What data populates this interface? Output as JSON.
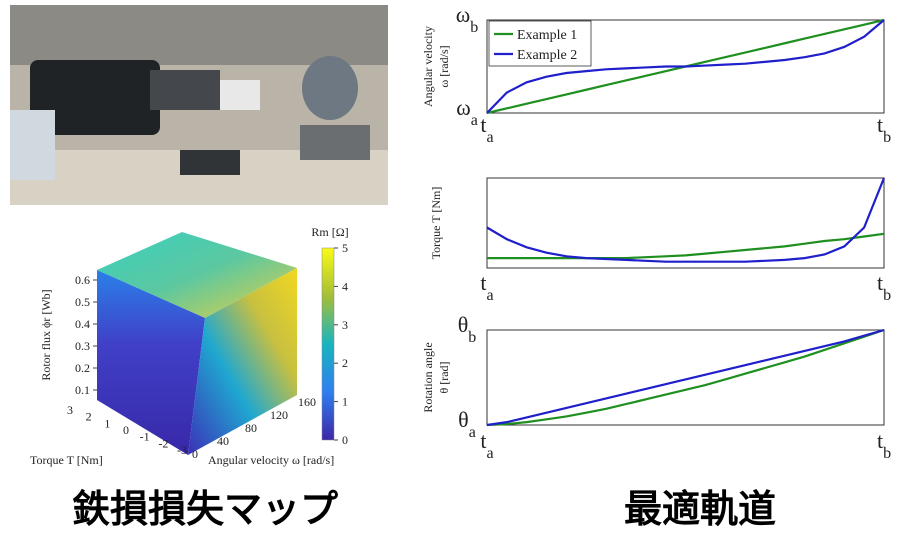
{
  "captions": [
    "鉄損損失マップ",
    "最適軌道"
  ],
  "loss_map": {
    "colorbar_title": "Rm [Ω]",
    "colorbar_ticks": [
      0,
      1,
      2,
      3,
      4,
      5
    ],
    "colorbar_lim": [
      0,
      5
    ],
    "flux_label": "Rotor flux ϕr [Wb]",
    "flux_ticks": [
      0.1,
      0.2,
      0.3,
      0.4,
      0.5,
      0.6
    ],
    "torque_label": "Torque T [Nm]",
    "torque_ticks": [
      3,
      2,
      1,
      0,
      -1,
      -2,
      -3
    ],
    "speed_label": "Angular velocity ω [rad/s]",
    "speed_ticks": [
      0,
      40,
      80,
      120,
      160
    ]
  },
  "chart_data": [
    {
      "type": "line",
      "ylabel": [
        "Angular velocity",
        "ω [rad/s]"
      ],
      "x": [
        0,
        0.05,
        0.1,
        0.15,
        0.2,
        0.25,
        0.3,
        0.35,
        0.4,
        0.45,
        0.5,
        0.55,
        0.6,
        0.65,
        0.7,
        0.75,
        0.8,
        0.85,
        0.9,
        0.95,
        1
      ],
      "xlim": [
        0,
        1
      ],
      "xticks": [
        {
          "value": 0,
          "label": "t",
          "sub": "a"
        },
        {
          "value": 1,
          "label": "t",
          "sub": "b"
        }
      ],
      "ylim": [
        0,
        1
      ],
      "yticks": [
        {
          "value": 0,
          "label": "ω",
          "sub": "a"
        },
        {
          "value": 1,
          "label": "ω",
          "sub": "b"
        }
      ],
      "legend": "upper left",
      "series": [
        {
          "name": "Example 1",
          "color": "#1f8f1f",
          "values": [
            0,
            0.05,
            0.1,
            0.15,
            0.2,
            0.25,
            0.3,
            0.35,
            0.4,
            0.45,
            0.5,
            0.55,
            0.6,
            0.65,
            0.7,
            0.75,
            0.8,
            0.85,
            0.9,
            0.95,
            1
          ]
        },
        {
          "name": "Example 2",
          "color": "#1f1fcc",
          "values": [
            0,
            0.22,
            0.33,
            0.39,
            0.43,
            0.45,
            0.47,
            0.48,
            0.49,
            0.5,
            0.5,
            0.51,
            0.52,
            0.53,
            0.55,
            0.57,
            0.6,
            0.64,
            0.71,
            0.82,
            1
          ]
        }
      ]
    },
    {
      "type": "line",
      "ylabel": [
        "Torque  T [Nm]"
      ],
      "x": [
        0,
        0.05,
        0.1,
        0.15,
        0.2,
        0.25,
        0.3,
        0.35,
        0.4,
        0.45,
        0.5,
        0.55,
        0.6,
        0.65,
        0.7,
        0.75,
        0.8,
        0.85,
        0.9,
        0.95,
        1
      ],
      "xlim": [
        0,
        1
      ],
      "xticks": [
        {
          "value": 0,
          "label": "t",
          "sub": "a"
        },
        {
          "value": 1,
          "label": "t",
          "sub": "b"
        }
      ],
      "ylim": [
        0,
        1
      ],
      "yticks": [],
      "series": [
        {
          "name": "Example 1",
          "color": "#1f8f1f",
          "values": [
            0.11,
            0.11,
            0.11,
            0.11,
            0.11,
            0.11,
            0.11,
            0.11,
            0.12,
            0.13,
            0.14,
            0.16,
            0.18,
            0.2,
            0.22,
            0.24,
            0.27,
            0.3,
            0.32,
            0.35,
            0.38
          ]
        },
        {
          "name": "Example 2",
          "color": "#1f1fcc",
          "values": [
            0.45,
            0.32,
            0.23,
            0.17,
            0.13,
            0.11,
            0.1,
            0.09,
            0.08,
            0.07,
            0.07,
            0.07,
            0.07,
            0.07,
            0.08,
            0.09,
            0.11,
            0.15,
            0.24,
            0.45,
            1
          ]
        }
      ]
    },
    {
      "type": "line",
      "ylabel": [
        "Rotation angle",
        "θ [rad]"
      ],
      "x": [
        0,
        0.05,
        0.1,
        0.15,
        0.2,
        0.25,
        0.3,
        0.35,
        0.4,
        0.45,
        0.5,
        0.55,
        0.6,
        0.65,
        0.7,
        0.75,
        0.8,
        0.85,
        0.9,
        0.95,
        1
      ],
      "xlim": [
        0,
        1
      ],
      "xticks": [
        {
          "value": 0,
          "label": "t",
          "sub": "a"
        },
        {
          "value": 1,
          "label": "t",
          "sub": "b"
        }
      ],
      "ylim": [
        0,
        1
      ],
      "yticks": [
        {
          "value": 0,
          "label": "θ",
          "sub": "a"
        },
        {
          "value": 1,
          "label": "θ",
          "sub": "b"
        }
      ],
      "series": [
        {
          "name": "Example 1",
          "color": "#1f8f1f",
          "values": [
            0,
            0.01,
            0.03,
            0.06,
            0.09,
            0.13,
            0.17,
            0.22,
            0.27,
            0.32,
            0.37,
            0.42,
            0.48,
            0.54,
            0.6,
            0.66,
            0.72,
            0.79,
            0.86,
            0.93,
            1
          ]
        },
        {
          "name": "Example 2",
          "color": "#1f1fcc",
          "values": [
            0,
            0.03,
            0.08,
            0.13,
            0.18,
            0.23,
            0.28,
            0.33,
            0.38,
            0.43,
            0.48,
            0.53,
            0.58,
            0.63,
            0.68,
            0.73,
            0.78,
            0.83,
            0.88,
            0.94,
            1
          ]
        }
      ]
    }
  ]
}
